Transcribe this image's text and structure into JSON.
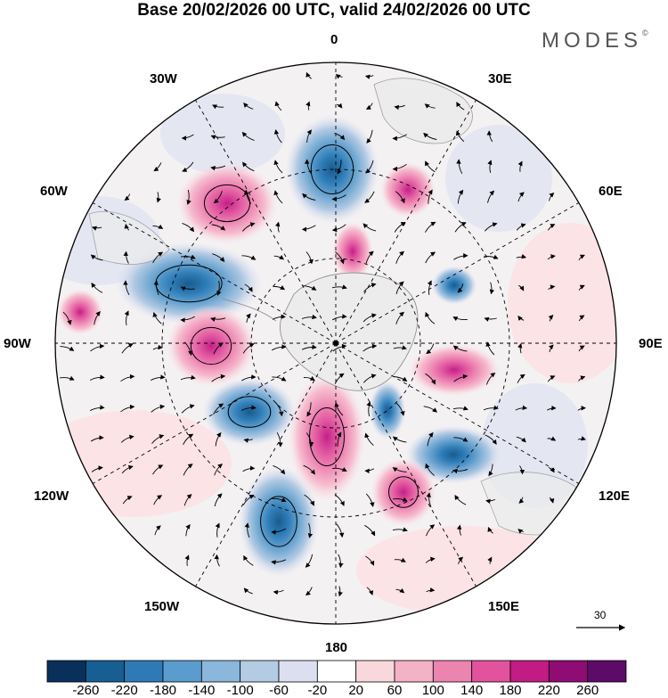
{
  "header": {
    "title": "Base 20/02/2026 00 UTC, valid 24/02/2026 00 UTC",
    "brand": "MODES",
    "brand_mark": "©"
  },
  "map": {
    "projection": "south polar stereographic",
    "longitude_labels": {
      "lon_0": "0",
      "lon_30e": "30E",
      "lon_60e": "60E",
      "lon_90e": "90E",
      "lon_120e": "120E",
      "lon_150e": "150E",
      "lon_180": "180",
      "lon_150w": "150W",
      "lon_120w": "120W",
      "lon_90w": "90W",
      "lon_60w": "60W",
      "lon_30w": "30W"
    },
    "anomalies": [
      {
        "id": "a1",
        "sign": "negative",
        "peak": -240
      },
      {
        "id": "a2",
        "sign": "negative",
        "peak": -260
      },
      {
        "id": "a3",
        "sign": "negative",
        "peak": -200
      },
      {
        "id": "a4",
        "sign": "negative",
        "peak": -220
      },
      {
        "id": "a5",
        "sign": "negative",
        "peak": -140
      },
      {
        "id": "a6",
        "sign": "negative",
        "peak": -140
      },
      {
        "id": "a7",
        "sign": "negative",
        "peak": -100
      },
      {
        "id": "a8",
        "sign": "positive",
        "peak": 180
      },
      {
        "id": "a9",
        "sign": "positive",
        "peak": 200
      },
      {
        "id": "a10",
        "sign": "positive",
        "peak": 180
      },
      {
        "id": "a11",
        "sign": "positive",
        "peak": 180
      },
      {
        "id": "a12",
        "sign": "positive",
        "peak": 140
      },
      {
        "id": "a13",
        "sign": "positive",
        "peak": 120
      },
      {
        "id": "a14",
        "sign": "positive",
        "peak": 100
      },
      {
        "id": "a15",
        "sign": "positive",
        "peak": 60
      }
    ]
  },
  "reference_vector": {
    "value": "30"
  },
  "colorbar": {
    "ticks": [
      "-260",
      "-220",
      "-180",
      "-140",
      "-100",
      "-60",
      "-20",
      "20",
      "60",
      "100",
      "140",
      "180",
      "220",
      "260"
    ],
    "colors": [
      "#08305a",
      "#175e93",
      "#2e7ab6",
      "#5a9ccd",
      "#8ab7db",
      "#b4cbe4",
      "#dcdff0",
      "#ffffff",
      "#f8d8dc",
      "#f4b2c6",
      "#ec84b0",
      "#e2529d",
      "#c21b84",
      "#8e0c74",
      "#5e0a68"
    ]
  }
}
